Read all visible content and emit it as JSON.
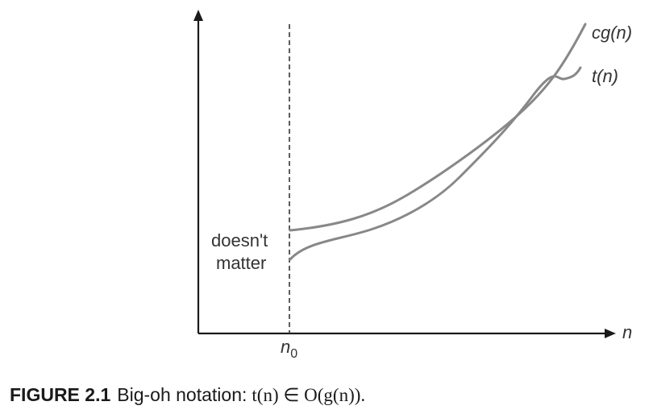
{
  "figure": {
    "labels": {
      "cg": "cg(n)",
      "t": "t(n)",
      "doesnt": "doesn't",
      "matter": "matter",
      "n_axis": "n",
      "n0": "n",
      "n0_sub": "0"
    },
    "caption": {
      "number": "FIGURE 2.1",
      "text": "Big-oh notation:",
      "math": "t(n) ∈ O(g(n))."
    },
    "colors": {
      "curve": "#888888",
      "axis": "#1a1a1a",
      "text": "#333333"
    }
  }
}
